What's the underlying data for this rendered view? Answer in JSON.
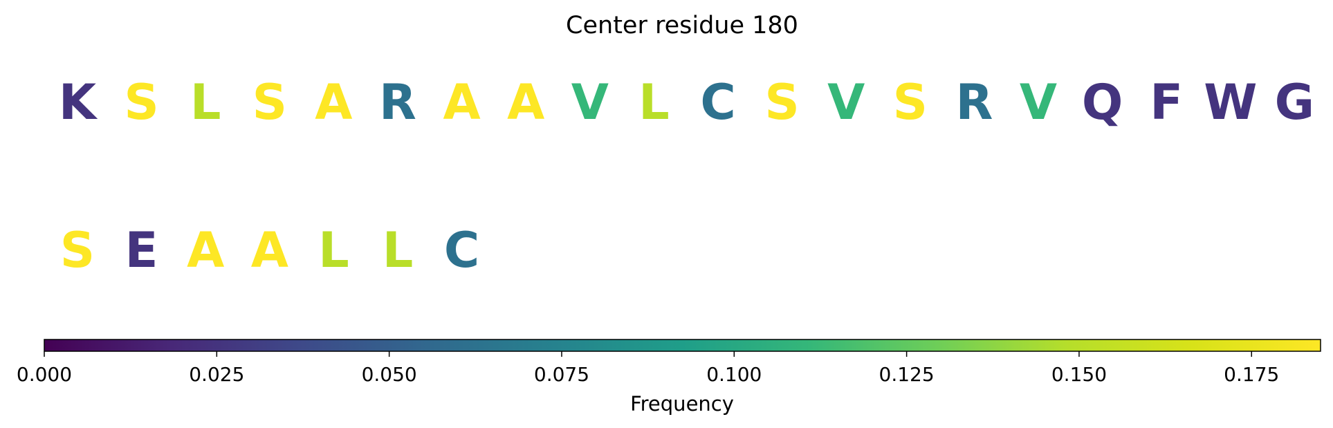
{
  "chart_data": {
    "type": "heatmap",
    "title": "Center residue 180",
    "residues": [
      {
        "letter": "K",
        "frequency": 0.025
      },
      {
        "letter": "S",
        "frequency": 0.185
      },
      {
        "letter": "L",
        "frequency": 0.15
      },
      {
        "letter": "S",
        "frequency": 0.185
      },
      {
        "letter": "A",
        "frequency": 0.185
      },
      {
        "letter": "R",
        "frequency": 0.062
      },
      {
        "letter": "A",
        "frequency": 0.185
      },
      {
        "letter": "A",
        "frequency": 0.185
      },
      {
        "letter": "V",
        "frequency": 0.111
      },
      {
        "letter": "L",
        "frequency": 0.15
      },
      {
        "letter": "C",
        "frequency": 0.062
      },
      {
        "letter": "S",
        "frequency": 0.185
      },
      {
        "letter": "V",
        "frequency": 0.111
      },
      {
        "letter": "S",
        "frequency": 0.185
      },
      {
        "letter": "R",
        "frequency": 0.062
      },
      {
        "letter": "V",
        "frequency": 0.111
      },
      {
        "letter": "Q",
        "frequency": 0.025
      },
      {
        "letter": "F",
        "frequency": 0.025
      },
      {
        "letter": "W",
        "frequency": 0.025
      },
      {
        "letter": "G",
        "frequency": 0.025
      },
      {
        "letter": "S",
        "frequency": 0.185
      },
      {
        "letter": "E",
        "frequency": 0.025
      },
      {
        "letter": "A",
        "frequency": 0.185
      },
      {
        "letter": "A",
        "frequency": 0.185
      },
      {
        "letter": "L",
        "frequency": 0.15
      },
      {
        "letter": "L",
        "frequency": 0.15
      },
      {
        "letter": "C",
        "frequency": 0.062
      }
    ],
    "residues_per_row": 20,
    "colormap": "viridis",
    "colorbar": {
      "label": "Frequency",
      "range": [
        0,
        0.185
      ],
      "ticks": [
        0.0,
        0.025,
        0.05,
        0.075,
        0.1,
        0.125,
        0.15,
        0.175
      ],
      "tick_labels": [
        "0.000",
        "0.025",
        "0.050",
        "0.075",
        "0.100",
        "0.125",
        "0.150",
        "0.175"
      ]
    }
  }
}
